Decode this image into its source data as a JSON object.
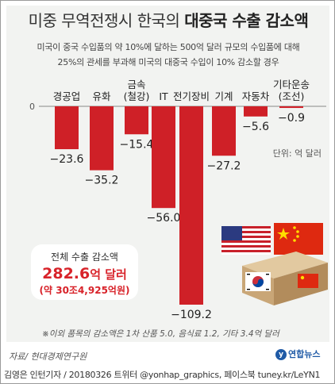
{
  "header": {
    "title_plain": "미중 무역전쟁시 한국의 ",
    "title_bold": "대중국 수출 감소액",
    "subtitle_line1": "미국이 중국 수입품의 약 10%에 달하는 500억 달러 규모의 수입품에 대해",
    "subtitle_line2": "25%의 관세를 부과해 미국의 대중국 수입이 10% 감소할 경우"
  },
  "chart_data": {
    "type": "bar",
    "title": "미중 무역전쟁시 한국의 대중국 수출 감소액",
    "categories": [
      [
        "경공업"
      ],
      [
        "유화"
      ],
      [
        "금속",
        "(철강)"
      ],
      [
        "IT"
      ],
      [
        "전기장비"
      ],
      [
        "기계"
      ],
      [
        "자동차"
      ],
      [
        "기타운송",
        "(조선)"
      ]
    ],
    "values": [
      -23.6,
      -35.2,
      -15.4,
      -56.0,
      -109.2,
      -27.2,
      -5.6,
      -0.9
    ],
    "value_labels": [
      "−23.6",
      "−35.2",
      "−15.4",
      "−56.0",
      "−109.2",
      "−27.2",
      "−5.6",
      "−0.9"
    ],
    "zero_label": "0",
    "ylim": [
      -109.2,
      0
    ],
    "unit": "단위: 억 달러",
    "bar_color": "#cf2027",
    "legend": "none",
    "grid": false
  },
  "total": {
    "label": "전체 수출 감소액",
    "value": "282.6",
    "value_unit": "억 달러",
    "sub": "(약 30조4,925억원)"
  },
  "note": "※이외 품목의 감소액은 1차 산품 5.0, 음식료 1.2, 기타 3.4억 달러",
  "source": "자료/ 현대경제연구원",
  "logo": "연합뉴스",
  "footer": "김영은 인턴기자 / 20180326  트위터 @yonhap_graphics, 페이스북 tuney.kr/LeYN1",
  "colors": {
    "accent": "#cf2027",
    "panel": "#f2f3f1"
  },
  "icons": [
    "us-flag-icon",
    "china-flag-icon",
    "korea-flag-icon",
    "cargo-box-icon"
  ]
}
